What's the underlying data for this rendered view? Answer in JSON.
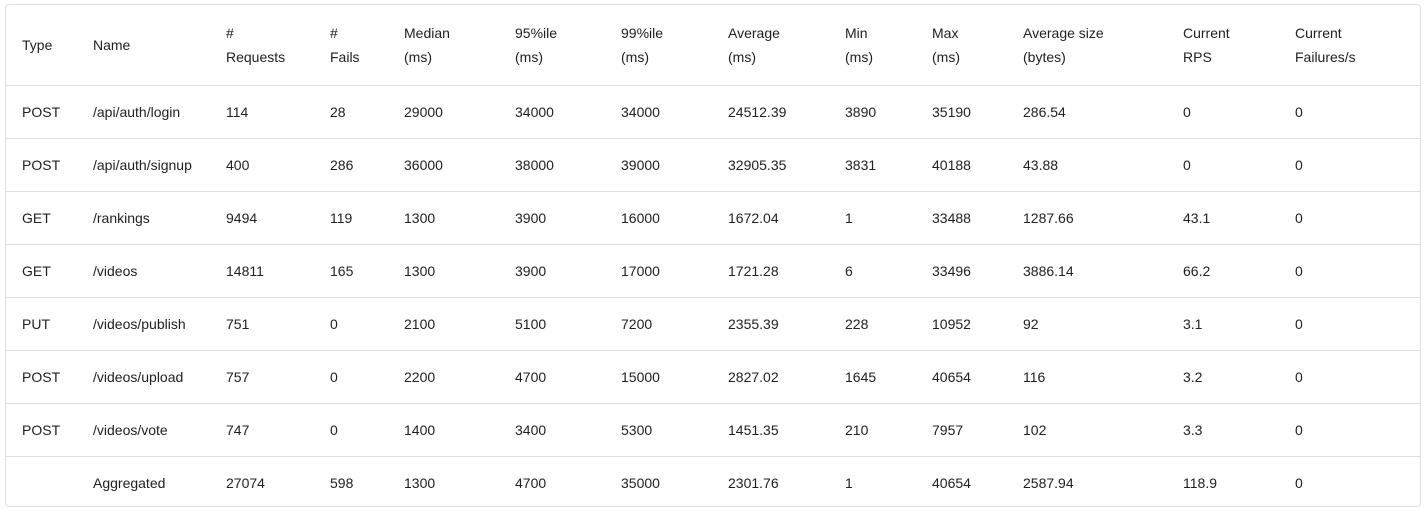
{
  "table": {
    "columns": [
      {
        "line1": "Type",
        "line2": ""
      },
      {
        "line1": "Name",
        "line2": ""
      },
      {
        "line1": "#",
        "line2": "Requests"
      },
      {
        "line1": "#",
        "line2": "Fails"
      },
      {
        "line1": "Median",
        "line2": "(ms)"
      },
      {
        "line1": "95%ile",
        "line2": "(ms)"
      },
      {
        "line1": "99%ile",
        "line2": "(ms)"
      },
      {
        "line1": "Average",
        "line2": "(ms)"
      },
      {
        "line1": "Min",
        "line2": "(ms)"
      },
      {
        "line1": "Max",
        "line2": "(ms)"
      },
      {
        "line1": "Average size",
        "line2": "(bytes)"
      },
      {
        "line1": "Current",
        "line2": "RPS"
      },
      {
        "line1": "Current",
        "line2": "Failures/s"
      }
    ],
    "rows": [
      [
        "POST",
        "/api/auth/login",
        "114",
        "28",
        "29000",
        "34000",
        "34000",
        "24512.39",
        "3890",
        "35190",
        "286.54",
        "0",
        "0"
      ],
      [
        "POST",
        "/api/auth/signup",
        "400",
        "286",
        "36000",
        "38000",
        "39000",
        "32905.35",
        "3831",
        "40188",
        "43.88",
        "0",
        "0"
      ],
      [
        "GET",
        "/rankings",
        "9494",
        "119",
        "1300",
        "3900",
        "16000",
        "1672.04",
        "1",
        "33488",
        "1287.66",
        "43.1",
        "0"
      ],
      [
        "GET",
        "/videos",
        "14811",
        "165",
        "1300",
        "3900",
        "17000",
        "1721.28",
        "6",
        "33496",
        "3886.14",
        "66.2",
        "0"
      ],
      [
        "PUT",
        "/videos/publish",
        "751",
        "0",
        "2100",
        "5100",
        "7200",
        "2355.39",
        "228",
        "10952",
        "92",
        "3.1",
        "0"
      ],
      [
        "POST",
        "/videos/upload",
        "757",
        "0",
        "2200",
        "4700",
        "15000",
        "2827.02",
        "1645",
        "40654",
        "116",
        "3.2",
        "0"
      ],
      [
        "POST",
        "/videos/vote",
        "747",
        "0",
        "1400",
        "3400",
        "5300",
        "1451.35",
        "210",
        "7957",
        "102",
        "3.3",
        "0"
      ],
      [
        "",
        "Aggregated",
        "27074",
        "598",
        "1300",
        "4700",
        "35000",
        "2301.76",
        "1",
        "40654",
        "2587.94",
        "118.9",
        "0"
      ]
    ]
  }
}
